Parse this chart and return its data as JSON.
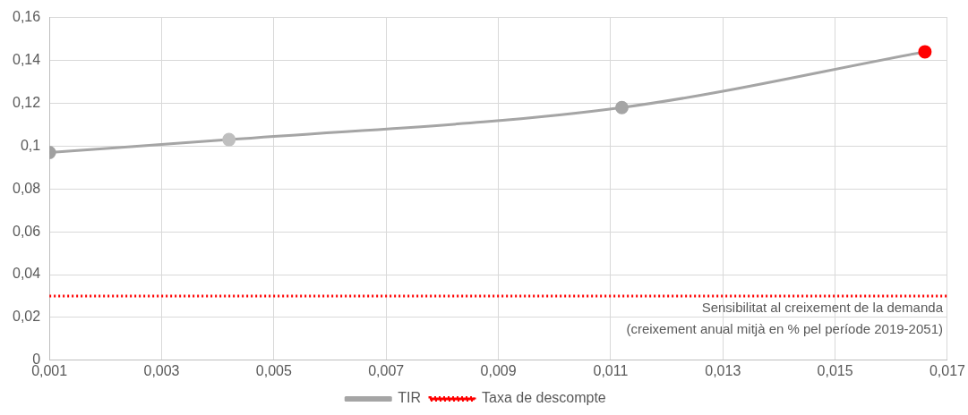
{
  "chart_data": {
    "type": "line",
    "xlabel": "Sensibilitat al creixement de la demanda\n(creixement anual mitjà en % pel període 2019-2051)",
    "x": [
      0.001,
      0.0042,
      0.0112,
      0.0166
    ],
    "series": [
      {
        "name": "TIR",
        "color": "#a5a5a5",
        "colors": [
          "#a0a0a0",
          "#bfbfbf",
          "#a5a5a5",
          "#ff0000"
        ],
        "values": [
          0.097,
          0.103,
          0.118,
          0.144
        ]
      }
    ],
    "xlim": [
      0.001,
      0.017
    ],
    "xticks": [
      {
        "value": 0.001,
        "label": "0,001"
      },
      {
        "value": 0.003,
        "label": "0,003"
      },
      {
        "value": 0.005,
        "label": "0,005"
      },
      {
        "value": 0.007,
        "label": "0,007"
      },
      {
        "value": 0.009,
        "label": "0,009"
      },
      {
        "value": 0.011,
        "label": "0,011"
      },
      {
        "value": 0.013,
        "label": "0,013"
      },
      {
        "value": 0.015,
        "label": "0,015"
      },
      {
        "value": 0.017,
        "label": "0,017"
      }
    ],
    "ylim": [
      0,
      0.16
    ],
    "yticks": [
      0,
      {
        "value": 0.02,
        "label": "0,02"
      },
      {
        "value": 0.04,
        "label": "0,04"
      },
      {
        "value": 0.06,
        "label": "0,06"
      },
      {
        "value": 0.08,
        "label": "0,08"
      },
      {
        "value": 0.1,
        "label": "0,1"
      },
      {
        "value": 0.12,
        "label": "0,12"
      },
      {
        "value": 0.14,
        "label": "0,14"
      },
      {
        "value": 0.16,
        "label": "0,16"
      }
    ],
    "ref_lines": [
      {
        "axis": "y",
        "value": 0.03,
        "label": "Taxa de descompte",
        "color": "#ff0000",
        "line_style": "dotted"
      }
    ],
    "grid": true,
    "legend": "bottom",
    "marker": "circle",
    "line_style": "solid"
  }
}
